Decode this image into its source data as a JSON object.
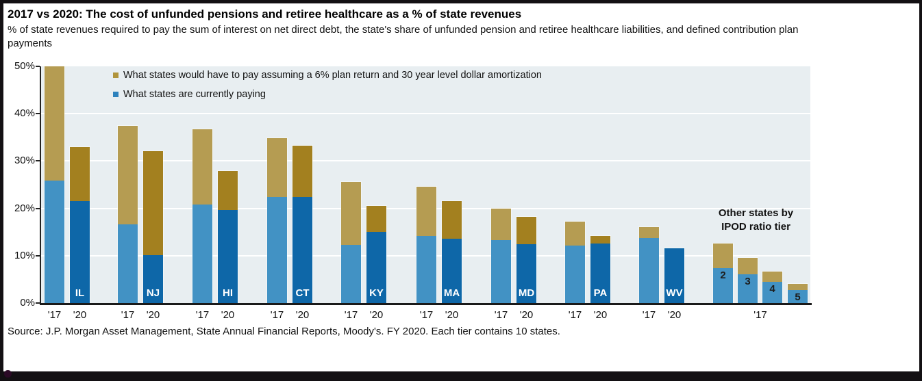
{
  "chart_data": {
    "type": "bar",
    "stacked": true,
    "title": "2017 vs 2020: The cost of unfunded pensions and retiree healthcare as a % of state revenues",
    "subtitle": "% of state revenues required to pay the sum of interest on net direct debt, the state's share of unfunded pension and retiree healthcare liabilities, and defined contribution plan payments",
    "ylim": [
      0,
      50
    ],
    "yticks": [
      "0%",
      "10%",
      "20%",
      "30%",
      "40%",
      "50%"
    ],
    "grid": "horizontal white lines at 10% steps",
    "legend_position": "top-left inside plot",
    "legend": [
      {
        "series": "assumed_6pct_30yr",
        "label": "What states would have to pay assuming a 6% plan return and 30 year level dollar amortization",
        "swatch_color": "#B0943C"
      },
      {
        "series": "currently_paying",
        "label": "What states are currently paying",
        "swatch_color": "#2D82BD"
      }
    ],
    "annotation": "Other states by\nIPOD ratio tier",
    "tier_x_tick": "'17",
    "source": "Source: J.P. Morgan Asset Management, State Annual Financial Reports, Moody's. FY 2020. Each tier contains 10 states.",
    "note": "IL '17 bar is truncated at the 50% axis maximum; WV '20 shows no assumed-payment segment",
    "state_groups": [
      {
        "label": "IL",
        "bars": [
          {
            "year": "'17",
            "currently_paying": 25.8,
            "total_with_6pct_assumption": 50.0
          },
          {
            "year": "'20",
            "currently_paying": 21.5,
            "total_with_6pct_assumption": 33.0
          }
        ]
      },
      {
        "label": "NJ",
        "bars": [
          {
            "year": "'17",
            "currently_paying": 16.6,
            "total_with_6pct_assumption": 37.5
          },
          {
            "year": "'20",
            "currently_paying": 10.1,
            "total_with_6pct_assumption": 32.1
          }
        ]
      },
      {
        "label": "HI",
        "bars": [
          {
            "year": "'17",
            "currently_paying": 20.8,
            "total_with_6pct_assumption": 36.7
          },
          {
            "year": "'20",
            "currently_paying": 19.7,
            "total_with_6pct_assumption": 27.9
          }
        ]
      },
      {
        "label": "CT",
        "bars": [
          {
            "year": "'17",
            "currently_paying": 22.4,
            "total_with_6pct_assumption": 34.8
          },
          {
            "year": "'20",
            "currently_paying": 22.4,
            "total_with_6pct_assumption": 33.2
          }
        ]
      },
      {
        "label": "KY",
        "bars": [
          {
            "year": "'17",
            "currently_paying": 12.3,
            "total_with_6pct_assumption": 25.6
          },
          {
            "year": "'20",
            "currently_paying": 15.1,
            "total_with_6pct_assumption": 20.5
          }
        ]
      },
      {
        "label": "MA",
        "bars": [
          {
            "year": "'17",
            "currently_paying": 14.2,
            "total_with_6pct_assumption": 24.5
          },
          {
            "year": "'20",
            "currently_paying": 13.6,
            "total_with_6pct_assumption": 21.6
          }
        ]
      },
      {
        "label": "MD",
        "bars": [
          {
            "year": "'17",
            "currently_paying": 13.3,
            "total_with_6pct_assumption": 20.0
          },
          {
            "year": "'20",
            "currently_paying": 12.4,
            "total_with_6pct_assumption": 18.2
          }
        ]
      },
      {
        "label": "PA",
        "bars": [
          {
            "year": "'17",
            "currently_paying": 12.1,
            "total_with_6pct_assumption": 17.2
          },
          {
            "year": "'20",
            "currently_paying": 12.6,
            "total_with_6pct_assumption": 14.2
          }
        ]
      },
      {
        "label": "WV",
        "bars": [
          {
            "year": "'17",
            "currently_paying": 13.8,
            "total_with_6pct_assumption": 16.1
          },
          {
            "year": "'20",
            "currently_paying": 11.6,
            "total_with_6pct_assumption": 11.6
          }
        ]
      }
    ],
    "tier_groups": [
      {
        "label": "2",
        "year": "'17",
        "currently_paying": 7.4,
        "total_with_6pct_assumption": 12.6
      },
      {
        "label": "3",
        "year": "'17",
        "currently_paying": 6.1,
        "total_with_6pct_assumption": 9.5
      },
      {
        "label": "4",
        "year": "'17",
        "currently_paying": 4.5,
        "total_with_6pct_assumption": 6.6
      },
      {
        "label": "5",
        "year": "'17",
        "currently_paying": 2.7,
        "total_with_6pct_assumption": 4.0
      }
    ],
    "colors": {
      "bar_2017_paying": "#4292C4",
      "bar_2017_assumed": "#B59C52",
      "bar_2020_paying": "#0E67A8",
      "bar_2020_assumed": "#A3801F",
      "plot_background": "#E8EEF1",
      "gridline": "#FFFFFF",
      "axis": "#222222",
      "state_label_text": "#FFFFFF",
      "tier_label_text": "#1D1D1D"
    }
  }
}
